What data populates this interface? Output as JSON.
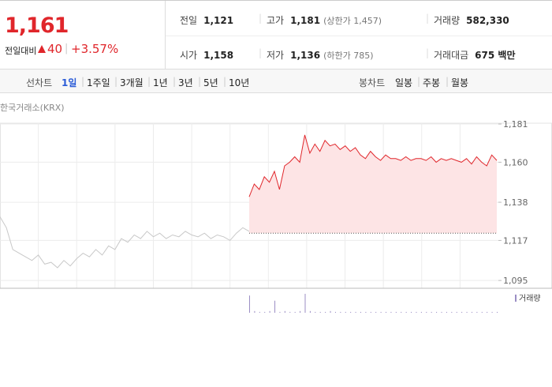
{
  "quote": {
    "price": "1,161",
    "change_label": "전일대비",
    "change": "40",
    "change_rate": "+3.57%"
  },
  "summary": {
    "rows": [
      [
        {
          "label": "전일",
          "value": "1,121"
        },
        {
          "label": "고가",
          "value": "1,181",
          "note": "(상한가 1,457)"
        },
        {
          "label": "거래량",
          "value": "582,330"
        }
      ],
      [
        {
          "label": "시가",
          "value": "1,158"
        },
        {
          "label": "저가",
          "value": "1,136",
          "note": "(하한가 785)"
        },
        {
          "label": "거래대금",
          "value": "675 백만"
        }
      ]
    ]
  },
  "tabs": {
    "line_label": "선차트",
    "line_periods": [
      "1일",
      "1주일",
      "3개월",
      "1년",
      "3년",
      "5년",
      "10년"
    ],
    "active": 0,
    "candle_label": "봉차트",
    "candle_periods": [
      "일봉",
      "주봉",
      "월봉"
    ]
  },
  "chart": {
    "type": "line",
    "source": "한국거래소(KRX)",
    "ylim": [
      1090.7,
      1188.4
    ],
    "yticks": [
      {
        "value": 1095,
        "label": "1,095"
      },
      {
        "value": 1117,
        "label": "1,117"
      },
      {
        "value": 1138,
        "label": "1,138"
      },
      {
        "value": 1160,
        "label": "1,160"
      },
      {
        "value": 1181,
        "label": "1,181"
      }
    ],
    "baseline": 1121,
    "grid": true,
    "series": [
      {
        "color": "#c8c8c8",
        "values": [
          1130,
          1124,
          1112,
          1110,
          1108,
          1106,
          1109,
          1104,
          1105,
          1102,
          1106,
          1103,
          1107,
          1110,
          1108,
          1112,
          1109,
          1114,
          1112,
          1118,
          1116,
          1120,
          1118,
          1122,
          1119,
          1121,
          1118,
          1120,
          1119,
          1122,
          1120,
          1119,
          1121,
          1118,
          1120,
          1119,
          1117,
          1121,
          1124,
          1122
        ]
      },
      {
        "color": "#e0262b",
        "fill": "#fde4e5",
        "values": [
          1141,
          1148,
          1145,
          1152,
          1149,
          1155,
          1145,
          1158,
          1160,
          1163,
          1160,
          1175,
          1165,
          1170,
          1166,
          1172,
          1169,
          1170,
          1167,
          1169,
          1166,
          1168,
          1164,
          1162,
          1166,
          1163,
          1161,
          1164,
          1162,
          1162,
          1161,
          1163,
          1161,
          1162,
          1162,
          1161,
          1163,
          1160,
          1162,
          1161,
          1162,
          1161,
          1160,
          1162,
          1159,
          1163,
          1160,
          1158,
          1164,
          1161
        ]
      }
    ],
    "volume": {
      "label": "거래량",
      "color": "#9b8ec4",
      "values": [
        20,
        2,
        1,
        1,
        2,
        14,
        1,
        2,
        1,
        1,
        2,
        22,
        2,
        1,
        1,
        1,
        2,
        1,
        1,
        1,
        1,
        1,
        1,
        1,
        1,
        1,
        1,
        1,
        1,
        1,
        1,
        1,
        1,
        1,
        1,
        1,
        1,
        1,
        1,
        1,
        1,
        1,
        1,
        1,
        1,
        1,
        1,
        1,
        1,
        1
      ]
    }
  }
}
